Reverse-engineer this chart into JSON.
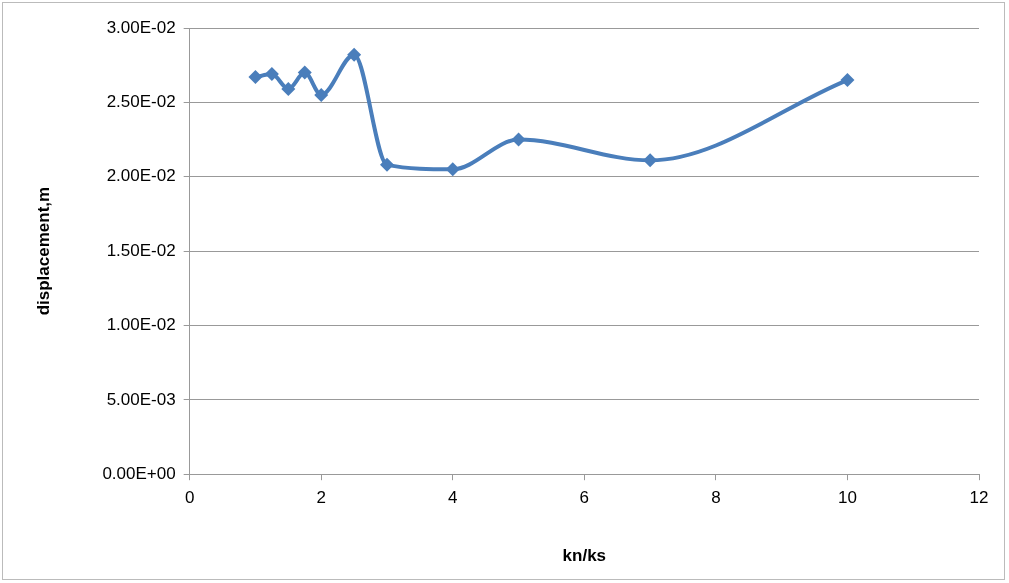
{
  "chart_data": {
    "type": "line",
    "xlabel": "kn/ks",
    "ylabel": "displacement,m",
    "x": [
      1,
      1.25,
      1.5,
      1.75,
      2,
      2.5,
      3,
      4,
      5,
      7,
      10
    ],
    "series": [
      {
        "color": "#4a7ebb",
        "values": [
          0.0267,
          0.0269,
          0.0259,
          0.027,
          0.0255,
          0.0282,
          0.0208,
          0.0205,
          0.0225,
          0.0211,
          0.0265
        ]
      }
    ],
    "xlim": [
      0,
      12
    ],
    "xticks": [
      0,
      2,
      4,
      6,
      8,
      10,
      12
    ],
    "ylim": [
      0,
      0.03
    ],
    "yticks": [
      {
        "value": 0,
        "label": "0.00E+00"
      },
      {
        "value": 0.005,
        "label": "5.00E-03"
      },
      {
        "value": 0.01,
        "label": "1.00E-02"
      },
      {
        "value": 0.015,
        "label": "1.50E-02"
      },
      {
        "value": 0.02,
        "label": "2.00E-02"
      },
      {
        "value": 0.025,
        "label": "2.50E-02"
      },
      {
        "value": 0.03,
        "label": "3.00E-02"
      }
    ],
    "grid": "y",
    "legend": false,
    "marker": "diamond",
    "line_style": "solid"
  }
}
